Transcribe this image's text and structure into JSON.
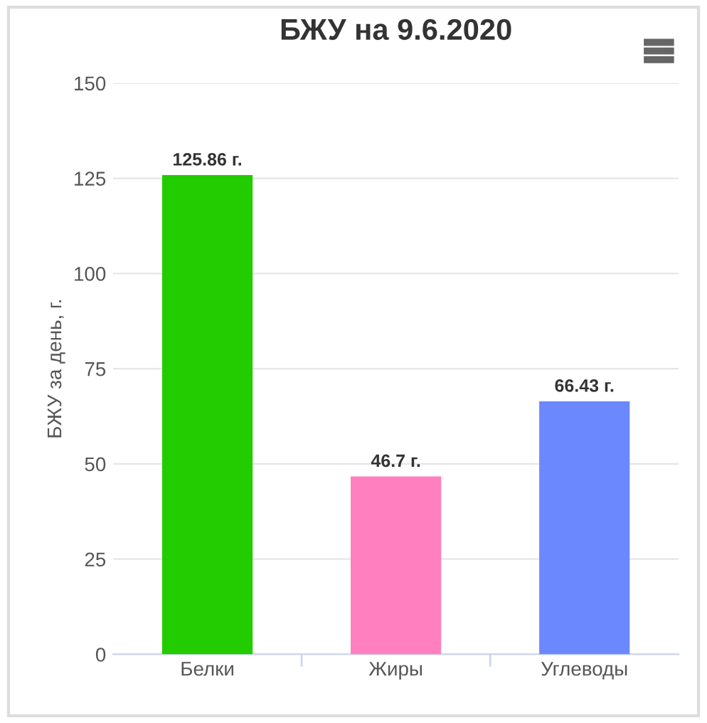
{
  "chart_data": {
    "type": "bar",
    "title": "БЖУ на 9.6.2020",
    "ylabel": "БЖУ за день, г.",
    "categories": [
      "Белки",
      "Жиры",
      "Углеводы"
    ],
    "values": [
      125.86,
      46.7,
      66.43
    ],
    "colors": [
      "#22cc00",
      "#ff7fbf",
      "#6b88ff"
    ],
    "value_labels": [
      "125.86 г.",
      "46.7 г.",
      "66.43 г."
    ],
    "ylim": [
      0,
      150
    ],
    "yticks": [
      0,
      25,
      50,
      75,
      100,
      125,
      150
    ],
    "grid": "y",
    "legend": false
  }
}
